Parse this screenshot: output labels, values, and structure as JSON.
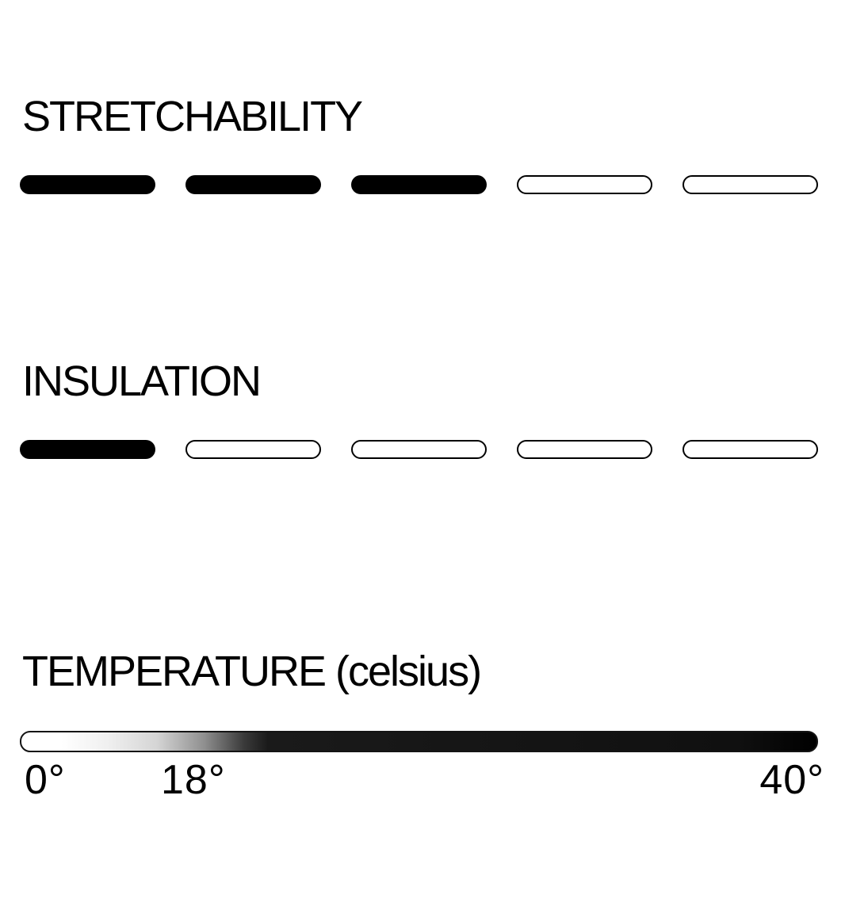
{
  "page": {
    "background_color": "#ffffff",
    "text_color": "#000000"
  },
  "sections": {
    "stretchability": {
      "title": "STRETCHABILITY",
      "rating": {
        "value": 3,
        "max": 5
      }
    },
    "insulation": {
      "title": "INSULATION",
      "rating": {
        "value": 1,
        "max": 5
      }
    },
    "temperature": {
      "title": "TEMPERATURE (celsius)",
      "unit": "celsius",
      "labels": {
        "min": "0°",
        "mid": "18°",
        "max": "40°"
      },
      "gradient": {
        "start_color": "#ffffff",
        "end_color": "#000000"
      }
    }
  },
  "chart_data": [
    {
      "type": "bar",
      "title": "STRETCHABILITY",
      "categories": [
        "rating"
      ],
      "values": [
        3
      ],
      "ylim": [
        0,
        5
      ],
      "note": "3 of 5 pill segments filled black, 2 outlined empty"
    },
    {
      "type": "bar",
      "title": "INSULATION",
      "categories": [
        "rating"
      ],
      "values": [
        1
      ],
      "ylim": [
        0,
        5
      ],
      "note": "1 of 5 pill segments filled black, 4 outlined empty"
    },
    {
      "type": "area",
      "title": "TEMPERATURE (celsius)",
      "xlabel": "temperature (°C)",
      "xlim": [
        0,
        40
      ],
      "ticks": [
        0,
        18,
        40
      ],
      "tick_labels": [
        "0°",
        "18°",
        "40°"
      ],
      "note": "horizontal gradient scale: white at 0°, fades to solid black near the 18° mark, solid black through 40°"
    }
  ]
}
